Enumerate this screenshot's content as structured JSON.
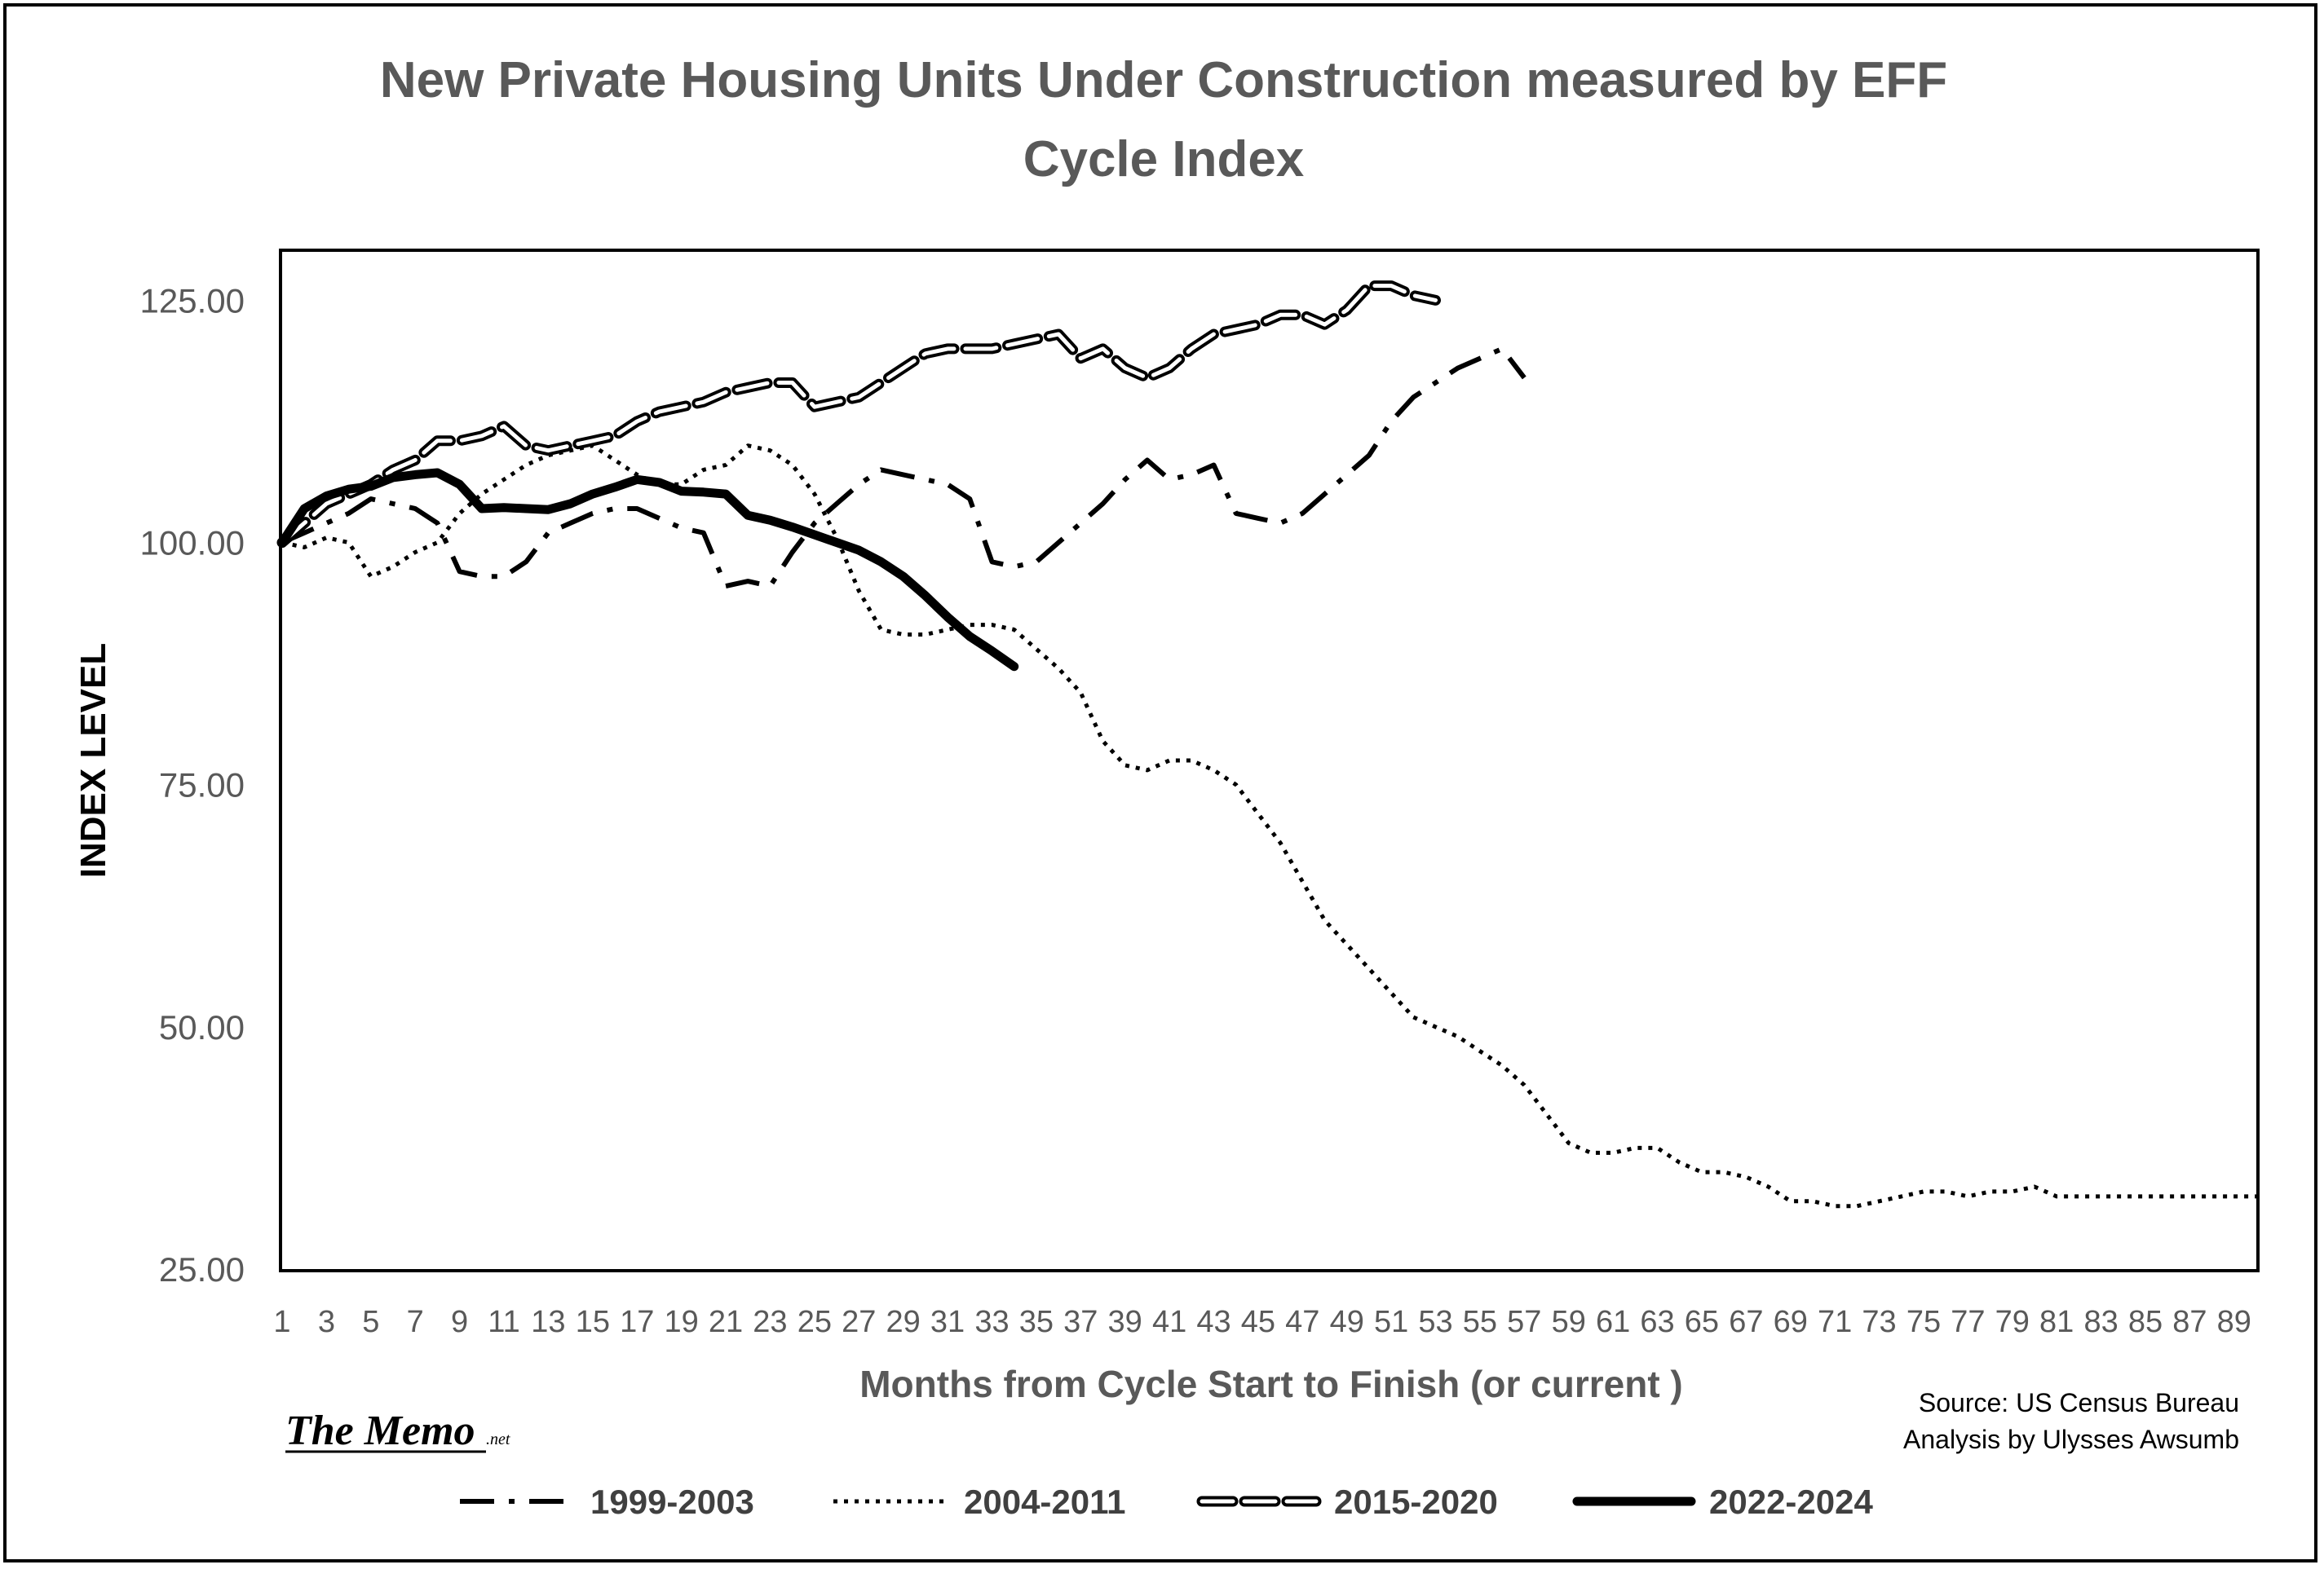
{
  "chart_data": {
    "type": "line",
    "title_line1": "New Private Housing Units Under Construction measured by EFF",
    "title_line2": "Cycle Index",
    "xlabel": "Months from Cycle Start to Finish (or current )",
    "ylabel": "INDEX LEVEL",
    "ylim": [
      25,
      130
    ],
    "xlim": [
      1,
      90
    ],
    "y_ticks": [
      "125.00",
      "100.00",
      "75.00",
      "50.00",
      "25.00"
    ],
    "y_tick_values": [
      125,
      100,
      75,
      50,
      25
    ],
    "x_ticks": [
      "1",
      "3",
      "5",
      "7",
      "9",
      "11",
      "13",
      "15",
      "17",
      "19",
      "21",
      "23",
      "25",
      "27",
      "29",
      "31",
      "33",
      "35",
      "37",
      "39",
      "41",
      "43",
      "45",
      "47",
      "49",
      "51",
      "53",
      "55",
      "57",
      "59",
      "61",
      "63",
      "65",
      "67",
      "69",
      "71",
      "73",
      "75",
      "77",
      "79",
      "81",
      "83",
      "85",
      "87",
      "89"
    ],
    "grid": false,
    "legend_position": "bottom",
    "series": [
      {
        "name": "1999-2003",
        "style": "dashdot",
        "x": [
          1,
          2,
          3,
          4,
          5,
          6,
          7,
          8,
          9,
          10,
          11,
          12,
          13,
          14,
          15,
          16,
          17,
          18,
          19,
          20,
          21,
          22,
          23,
          24,
          25,
          26,
          27,
          28,
          29,
          30,
          31,
          32,
          33,
          34,
          35,
          36,
          37,
          38,
          39,
          40,
          41,
          42,
          43,
          44,
          45,
          46,
          47,
          48,
          49,
          50,
          51,
          52,
          53,
          54,
          55,
          56,
          57
        ],
        "values": [
          100,
          101,
          102,
          103,
          104.5,
          104,
          103.5,
          102,
          97,
          96.5,
          96.5,
          98,
          101,
          102,
          103,
          103.5,
          103.5,
          102.5,
          101.5,
          101,
          95.5,
          96,
          95.5,
          99,
          102,
          104,
          106,
          107.5,
          107,
          106.5,
          106,
          104.5,
          98,
          97.5,
          98,
          100,
          102,
          104,
          106.5,
          108.5,
          106.5,
          107,
          108,
          103,
          102.5,
          102,
          103,
          105,
          107,
          109,
          112.5,
          115,
          116.5,
          118,
          119,
          120,
          117
        ]
      },
      {
        "name": "2004-2011",
        "style": "dotted",
        "x": [
          1,
          2,
          3,
          4,
          5,
          6,
          7,
          8,
          9,
          10,
          11,
          12,
          13,
          14,
          15,
          16,
          17,
          18,
          19,
          20,
          21,
          22,
          23,
          24,
          25,
          26,
          27,
          28,
          29,
          30,
          31,
          32,
          33,
          34,
          35,
          36,
          37,
          38,
          39,
          40,
          41,
          42,
          43,
          44,
          45,
          46,
          47,
          48,
          49,
          50,
          51,
          52,
          53,
          54,
          55,
          56,
          57,
          58,
          59,
          60,
          61,
          62,
          63,
          64,
          65,
          66,
          67,
          68,
          69,
          70,
          71,
          72,
          73,
          74,
          75,
          76,
          77,
          78,
          79,
          80,
          81,
          82,
          83,
          84,
          85,
          86,
          87,
          88,
          89,
          90
        ],
        "values": [
          100,
          99.5,
          100.5,
          100,
          96.5,
          97.5,
          99,
          100,
          103,
          105,
          106.5,
          108,
          109,
          109.5,
          110,
          108.5,
          107,
          106,
          106,
          107.5,
          108,
          110,
          109.5,
          108,
          105,
          100.5,
          95,
          91,
          90.5,
          90.5,
          91,
          91.5,
          91.5,
          91,
          89,
          87,
          84.5,
          79.5,
          77,
          76.5,
          77.5,
          77.5,
          76.5,
          75,
          72,
          69,
          65,
          61,
          58.5,
          56,
          53.5,
          51,
          50,
          49,
          47.5,
          46,
          44,
          41,
          38,
          37,
          37,
          37.5,
          37.5,
          36,
          35,
          35,
          34.5,
          33.5,
          32,
          32,
          31.5,
          31.5,
          32,
          32.5,
          33,
          33,
          32.5,
          33,
          33,
          33.5,
          32.5,
          32.5,
          32.5,
          32.5,
          32.5,
          32.5,
          32.5,
          32.5,
          32.5,
          32.5
        ]
      },
      {
        "name": "2015-2020",
        "style": "double-dashed",
        "x": [
          1,
          2,
          3,
          4,
          5,
          6,
          7,
          8,
          9,
          10,
          11,
          12,
          13,
          14,
          15,
          16,
          17,
          18,
          19,
          20,
          21,
          22,
          23,
          24,
          25,
          26,
          27,
          28,
          29,
          30,
          31,
          32,
          33,
          34,
          35,
          36,
          37,
          38,
          39,
          40,
          41,
          42,
          43,
          44,
          45,
          46,
          47,
          48,
          49,
          50,
          51,
          52,
          53
        ],
        "values": [
          100,
          102,
          104,
          105,
          106,
          107.5,
          108.5,
          110.5,
          110.5,
          111,
          112,
          110,
          109.5,
          110,
          110.5,
          111,
          112.5,
          113.5,
          114,
          114.5,
          115.5,
          116,
          116.5,
          116.5,
          114,
          114.5,
          115,
          116.5,
          118,
          119.5,
          120,
          120,
          120,
          120.5,
          121,
          121.5,
          119,
          120,
          118,
          117,
          118,
          120,
          121.5,
          122,
          122.5,
          123.5,
          123.5,
          122.5,
          124,
          126.5,
          126.5,
          125.5,
          125
        ]
      },
      {
        "name": "2022-2024",
        "style": "solid-thick",
        "x": [
          1,
          2,
          3,
          4,
          5,
          6,
          7,
          8,
          9,
          10,
          11,
          12,
          13,
          14,
          15,
          16,
          17,
          18,
          19,
          20,
          21,
          22,
          23,
          24,
          25,
          26,
          27,
          28,
          29,
          30,
          31,
          32,
          33,
          34
        ],
        "values": [
          100,
          103.5,
          104.8,
          105.5,
          105.8,
          106.7,
          107,
          107.2,
          106,
          103.5,
          103.6,
          103.5,
          103.4,
          104,
          105,
          105.7,
          106.5,
          106.2,
          105.3,
          105.2,
          105,
          102.8,
          102.3,
          101.6,
          100.8,
          100,
          99.2,
          98,
          96.5,
          94.5,
          92.3,
          90.3,
          88.8,
          87.2
        ]
      }
    ],
    "source_line1": "Source: US Census Bureau",
    "source_line2": "Analysis by Ulysses Awsumb",
    "brand_main": "The Memo",
    "brand_suffix": ".net"
  }
}
